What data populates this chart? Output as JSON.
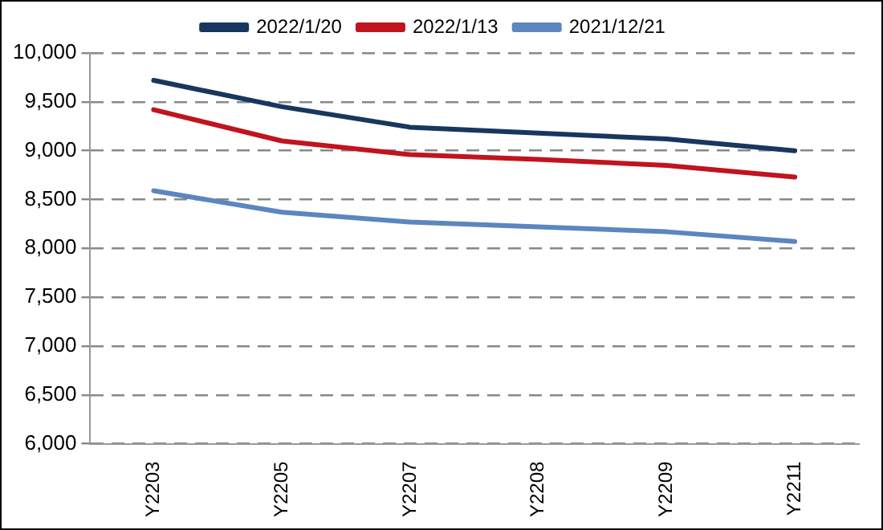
{
  "chart_data": {
    "type": "line",
    "categories": [
      "Y2203",
      "Y2205",
      "Y2207",
      "Y2208",
      "Y2209",
      "Y2211"
    ],
    "series": [
      {
        "name": "2022/1/20",
        "color": "#17375e",
        "values": [
          9720,
          9450,
          9240,
          9180,
          9120,
          9000
        ]
      },
      {
        "name": "2022/1/13",
        "color": "#c0141e",
        "values": [
          9420,
          9100,
          8960,
          8910,
          8850,
          8730
        ]
      },
      {
        "name": "2021/12/21",
        "color": "#5b86c0",
        "values": [
          8590,
          8370,
          8270,
          8220,
          8170,
          8070
        ]
      }
    ],
    "ylim": [
      6000,
      10000
    ],
    "yticks": [
      {
        "value": 6000,
        "label": "6,000"
      },
      {
        "value": 6500,
        "label": "6,500"
      },
      {
        "value": 7000,
        "label": "7,000"
      },
      {
        "value": 7500,
        "label": "7,500"
      },
      {
        "value": 8000,
        "label": "8,000"
      },
      {
        "value": 8500,
        "label": "8,500"
      },
      {
        "value": 9000,
        "label": "9,000"
      },
      {
        "value": 9500,
        "label": "9,500"
      },
      {
        "value": 10000,
        "label": "10,000"
      }
    ],
    "grid": "y",
    "legend": "top",
    "marker": "none",
    "line_style": "solid"
  }
}
